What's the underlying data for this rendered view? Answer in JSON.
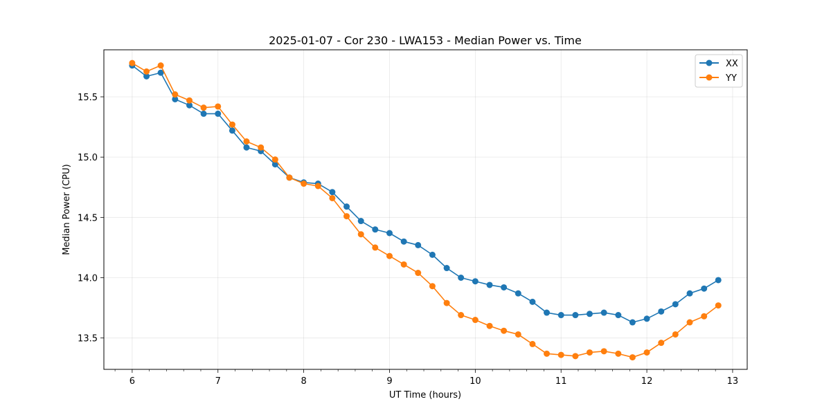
{
  "chart_data": {
    "type": "line",
    "title": "2025-01-07 - Cor 230 - LWA153 - Median Power vs. Time",
    "xlabel": "UT Time (hours)",
    "ylabel": "Median Power (CPU)",
    "xlim": [
      5.67,
      13.17
    ],
    "ylim": [
      13.24,
      15.89
    ],
    "xticks": [
      6,
      7,
      8,
      9,
      10,
      11,
      12,
      13
    ],
    "xtick_labels": [
      "6",
      "7",
      "8",
      "9",
      "10",
      "11",
      "12",
      "13"
    ],
    "xminor_step": 0.2,
    "yticks": [
      13.5,
      14.0,
      14.5,
      15.0,
      15.5
    ],
    "ytick_labels": [
      "13.5",
      "14.0",
      "14.5",
      "15.0",
      "15.5"
    ],
    "grid": true,
    "legend_position": "top-right",
    "x": [
      6.0,
      6.167,
      6.333,
      6.5,
      6.667,
      6.833,
      7.0,
      7.167,
      7.333,
      7.5,
      7.667,
      7.833,
      8.0,
      8.167,
      8.333,
      8.5,
      8.667,
      8.833,
      9.0,
      9.167,
      9.333,
      9.5,
      9.667,
      9.833,
      10.0,
      10.167,
      10.333,
      10.5,
      10.667,
      10.833,
      11.0,
      11.167,
      11.333,
      11.5,
      11.667,
      11.833,
      12.0,
      12.167,
      12.333,
      12.5,
      12.667,
      12.833
    ],
    "series": [
      {
        "name": "XX",
        "color": "#1f77b4",
        "values": [
          15.76,
          15.67,
          15.7,
          15.48,
          15.43,
          15.36,
          15.36,
          15.22,
          15.08,
          15.05,
          14.94,
          14.83,
          14.79,
          14.78,
          14.71,
          14.59,
          14.47,
          14.4,
          14.37,
          14.3,
          14.27,
          14.19,
          14.08,
          14.0,
          13.97,
          13.94,
          13.92,
          13.87,
          13.8,
          13.71,
          13.69,
          13.69,
          13.7,
          13.71,
          13.69,
          13.63,
          13.66,
          13.72,
          13.78,
          13.87,
          13.91,
          13.98
        ]
      },
      {
        "name": "YY",
        "color": "#ff7f0e",
        "values": [
          15.78,
          15.71,
          15.76,
          15.52,
          15.47,
          15.41,
          15.42,
          15.27,
          15.13,
          15.08,
          14.98,
          14.83,
          14.78,
          14.76,
          14.66,
          14.51,
          14.36,
          14.25,
          14.18,
          14.11,
          14.04,
          13.93,
          13.79,
          13.69,
          13.65,
          13.6,
          13.56,
          13.53,
          13.45,
          13.37,
          13.36,
          13.35,
          13.38,
          13.39,
          13.37,
          13.34,
          13.38,
          13.46,
          13.53,
          13.63,
          13.68,
          13.77
        ]
      }
    ]
  }
}
